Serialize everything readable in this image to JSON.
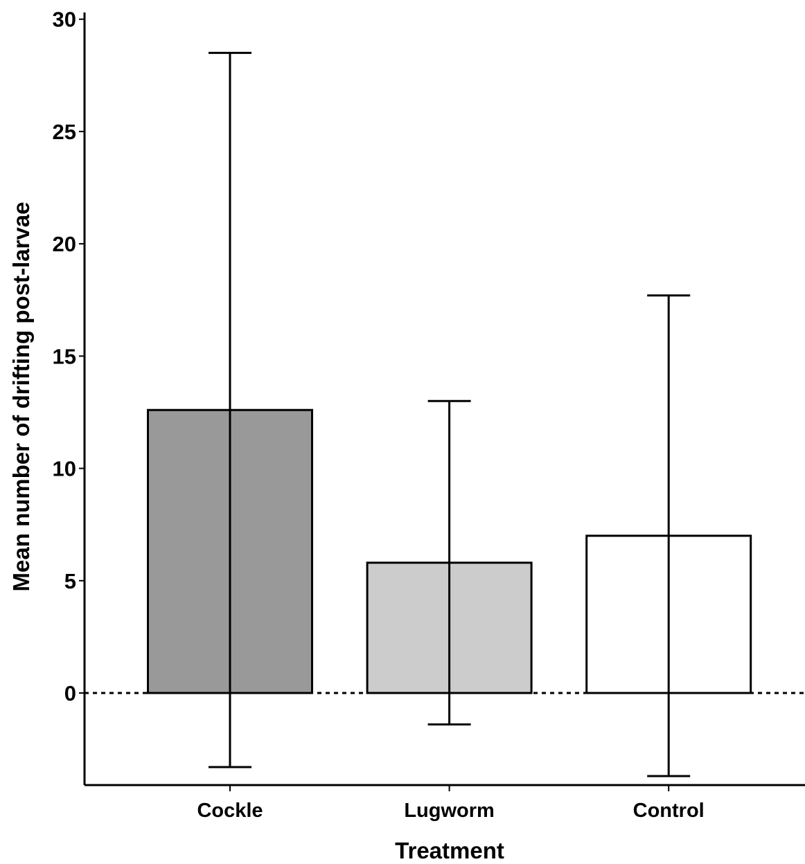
{
  "chart_data": {
    "type": "bar",
    "x_label": "Treatment",
    "y_label": "Mean number of drifting post-larvae",
    "categories": [
      "Cockle",
      "Lugworm",
      "Control"
    ],
    "values": [
      12.6,
      5.8,
      7.0
    ],
    "errors": [
      15.9,
      7.2,
      10.7
    ],
    "colors": [
      "#999999",
      "#cccccc",
      "#ffffff"
    ],
    "ylim": [
      -4.1,
      30.3
    ],
    "yticks": [
      0,
      5,
      10,
      15,
      20,
      25,
      30
    ],
    "reference_line": 0
  }
}
